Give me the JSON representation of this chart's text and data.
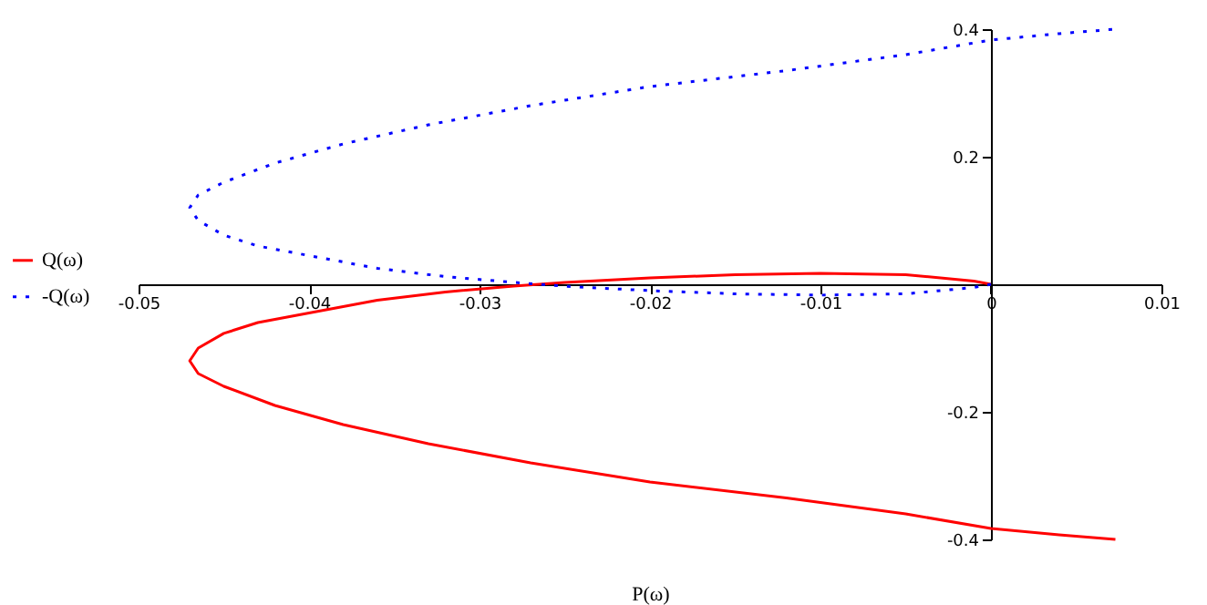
{
  "chart_data": {
    "type": "line",
    "xlabel": "P(ω)",
    "legend": "left",
    "grid": false,
    "x": [
      0,
      -0.001,
      -0.005,
      -0.01,
      -0.015,
      -0.02,
      -0.025,
      -0.028,
      -0.032,
      -0.036,
      -0.04,
      -0.043,
      -0.045,
      -0.0465,
      -0.047,
      -0.0465,
      -0.045,
      -0.042,
      -0.038,
      -0.033,
      -0.027,
      -0.02,
      -0.012,
      -0.005,
      0,
      0.004,
      0.0073
    ],
    "series": [
      {
        "name": "Q(ω)",
        "color": "#ff0000",
        "line_style": "solid",
        "values": [
          0,
          0.005,
          0.015,
          0.017,
          0.015,
          0.01,
          0.003,
          -0.003,
          -0.012,
          -0.025,
          -0.045,
          -0.06,
          -0.077,
          -0.1,
          -0.12,
          -0.14,
          -0.16,
          -0.19,
          -0.22,
          -0.25,
          -0.28,
          -0.31,
          -0.335,
          -0.36,
          -0.383,
          -0.393,
          -0.4
        ]
      },
      {
        "name": "-Q(ω)",
        "color": "#0000ff",
        "line_style": "dotted",
        "values": [
          0,
          -0.005,
          -0.015,
          -0.017,
          -0.015,
          -0.01,
          -0.003,
          0.003,
          0.012,
          0.025,
          0.045,
          0.06,
          0.077,
          0.1,
          0.12,
          0.14,
          0.16,
          0.19,
          0.22,
          0.25,
          0.28,
          0.31,
          0.335,
          0.36,
          0.383,
          0.393,
          0.4
        ]
      }
    ],
    "xlim": [
      -0.05,
      0.01
    ],
    "ylim": [
      -0.4,
      0.4
    ],
    "xticks": [
      -0.05,
      -0.04,
      -0.03,
      -0.02,
      -0.01,
      0,
      0.01
    ],
    "yticks": [
      -0.4,
      -0.2,
      0.2,
      0.4
    ]
  }
}
